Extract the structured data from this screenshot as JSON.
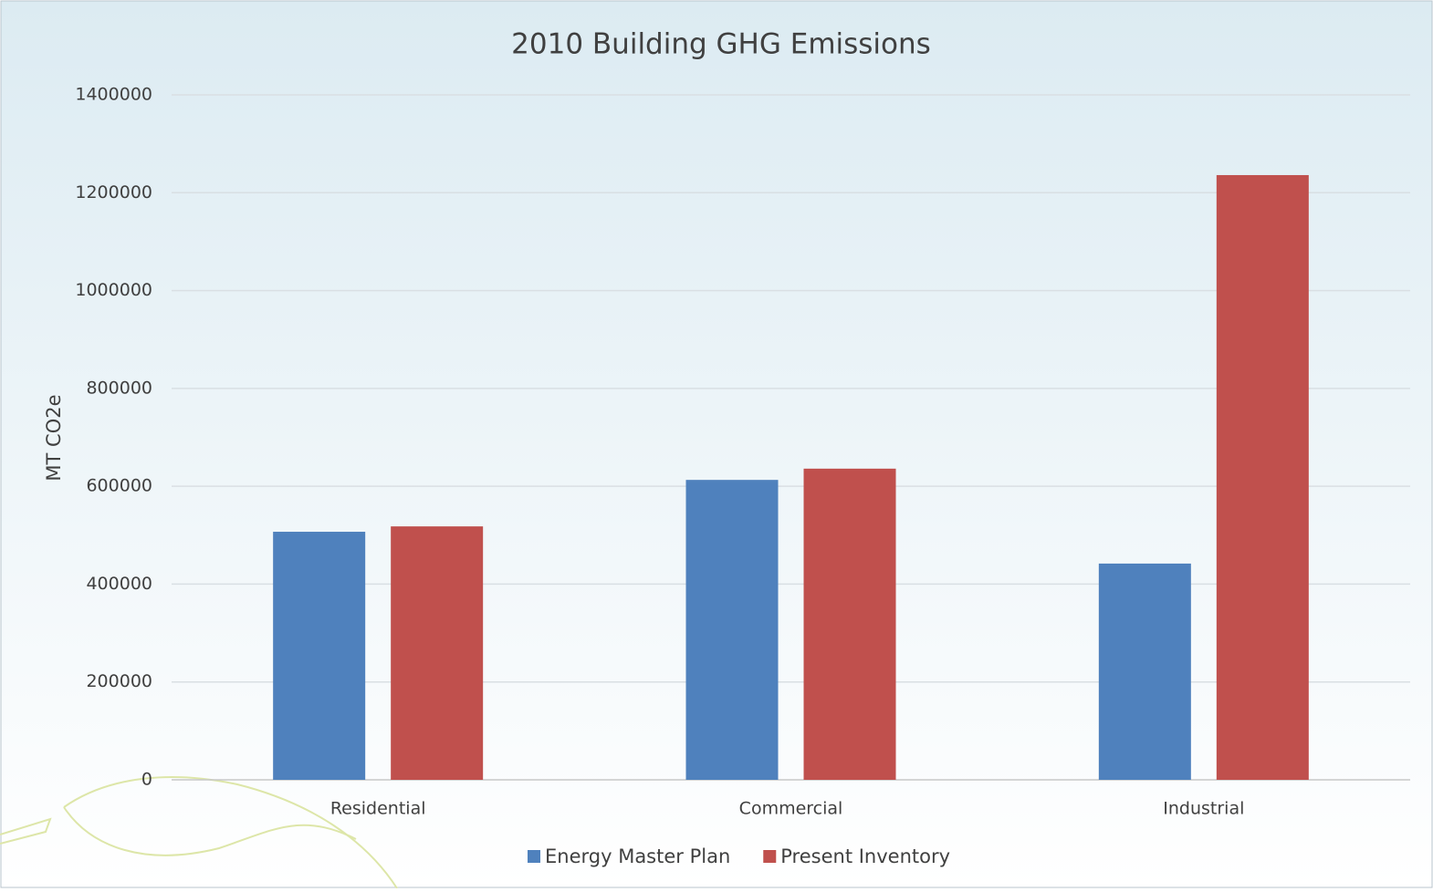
{
  "chart_data": {
    "type": "bar",
    "title": "2010 Building GHG Emissions",
    "y_label": "MT CO2e",
    "categories": [
      "Residential",
      "Commercial",
      "Industrial"
    ],
    "series": [
      {
        "name": "Energy Master Plan",
        "color": "#4f81bd",
        "values": [
          507000,
          613000,
          442000
        ]
      },
      {
        "name": "Present Inventory",
        "color": "#c0504d",
        "values": [
          518000,
          636000,
          1236000
        ]
      }
    ],
    "ylim": [
      0,
      1400000
    ],
    "yticks": [
      0,
      200000,
      400000,
      600000,
      800000,
      1000000,
      1200000,
      1400000
    ],
    "grid": true
  }
}
